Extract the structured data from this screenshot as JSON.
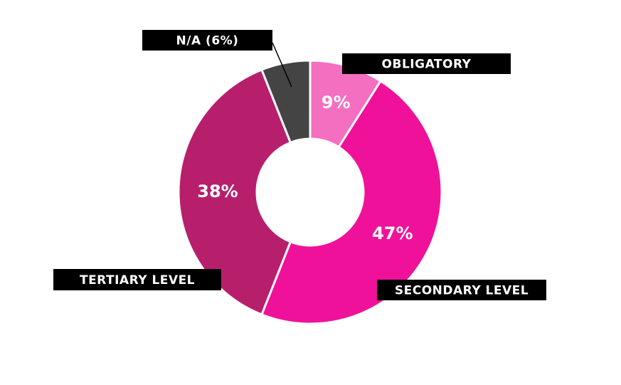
{
  "chart_data": {
    "type": "donut",
    "categories": [
      "OBLIGATORY",
      "SECONDARY LEVEL",
      "TERTIARY LEVEL",
      "N/A (6%)"
    ],
    "values": [
      9,
      47,
      38,
      6
    ],
    "value_labels": [
      "9%",
      "47%",
      "38%",
      null
    ],
    "colors": [
      "#f46fc0",
      "#f0119a",
      "#b71f6c",
      "#444444"
    ]
  }
}
